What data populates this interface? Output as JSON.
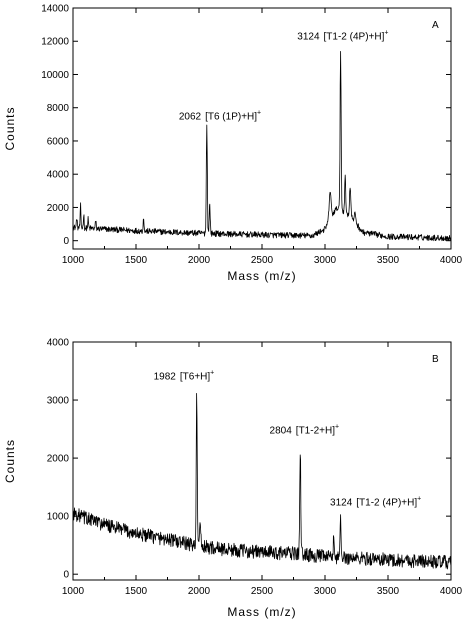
{
  "chart_data": [
    {
      "panel": "A",
      "type": "line",
      "xlabel": "Mass (m/z)",
      "ylabel": "Counts",
      "xlim": [
        1000,
        4000
      ],
      "ylim": [
        -500,
        14000
      ],
      "x_ticks": [
        1000,
        1500,
        2000,
        2500,
        3000,
        3500,
        4000
      ],
      "y_ticks": [
        0,
        2000,
        4000,
        6000,
        8000,
        10000,
        12000,
        14000
      ],
      "grid": false,
      "baseline": [
        [
          1000,
          800
        ],
        [
          1500,
          600
        ],
        [
          2000,
          450
        ],
        [
          2500,
          350
        ],
        [
          2900,
          300
        ],
        [
          3000,
          700
        ],
        [
          3050,
          1500
        ],
        [
          3100,
          2000
        ],
        [
          3200,
          1500
        ],
        [
          3300,
          500
        ],
        [
          3500,
          250
        ],
        [
          4000,
          150
        ]
      ],
      "noise": 180,
      "peaks": [
        {
          "x": 1030,
          "y": 1400,
          "w": 3
        },
        {
          "x": 1060,
          "y": 2100,
          "w": 3
        },
        {
          "x": 1085,
          "y": 1600,
          "w": 3
        },
        {
          "x": 1120,
          "y": 1300,
          "w": 3
        },
        {
          "x": 1180,
          "y": 1200,
          "w": 3
        },
        {
          "x": 1560,
          "y": 1500,
          "w": 3
        },
        {
          "x": 2062,
          "y": 6900,
          "w": 4
        },
        {
          "x": 2085,
          "y": 2200,
          "w": 4
        },
        {
          "x": 3040,
          "y": 3000,
          "w": 7
        },
        {
          "x": 3124,
          "y": 11500,
          "w": 4
        },
        {
          "x": 3160,
          "y": 4000,
          "w": 4
        },
        {
          "x": 3200,
          "y": 3300,
          "w": 5
        },
        {
          "x": 3240,
          "y": 1700,
          "w": 5
        }
      ],
      "annotations": [
        {
          "mass": "2062",
          "formula": "[T6 (1P)+H]",
          "charge": "+",
          "x": 1840,
          "y": 7300
        },
        {
          "mass": "3124",
          "formula": "[T1-2 (4P)+H]",
          "charge": "+",
          "x": 2780,
          "y": 12100
        }
      ]
    },
    {
      "panel": "B",
      "type": "line",
      "xlabel": "Mass (m/z)",
      "ylabel": "Counts",
      "xlim": [
        1000,
        4000
      ],
      "ylim": [
        -100,
        4000
      ],
      "x_ticks": [
        1000,
        1500,
        2000,
        2500,
        3000,
        3500,
        4000
      ],
      "y_ticks": [
        0,
        1000,
        2000,
        3000,
        4000
      ],
      "grid": false,
      "baseline": [
        [
          1000,
          1050
        ],
        [
          1250,
          850
        ],
        [
          1500,
          700
        ],
        [
          1750,
          600
        ],
        [
          2000,
          480
        ],
        [
          2250,
          420
        ],
        [
          2500,
          380
        ],
        [
          2800,
          350
        ],
        [
          3000,
          300
        ],
        [
          3500,
          250
        ],
        [
          4000,
          200
        ]
      ],
      "noise": 120,
      "peaks": [
        {
          "x": 1982,
          "y": 3100,
          "w": 4
        },
        {
          "x": 2010,
          "y": 800,
          "w": 5
        },
        {
          "x": 2804,
          "y": 2150,
          "w": 4
        },
        {
          "x": 3070,
          "y": 600,
          "w": 5
        },
        {
          "x": 3124,
          "y": 920,
          "w": 4
        }
      ],
      "annotations": [
        {
          "mass": "1982",
          "formula": "[T6+H]",
          "charge": "+",
          "x": 1640,
          "y": 3350
        },
        {
          "mass": "2804",
          "formula": "[T1-2+H]",
          "charge": "+",
          "x": 2560,
          "y": 2420
        },
        {
          "mass": "3124",
          "formula": "[T1-2 (4P)+H]",
          "charge": "+",
          "x": 3040,
          "y": 1180
        }
      ]
    }
  ]
}
